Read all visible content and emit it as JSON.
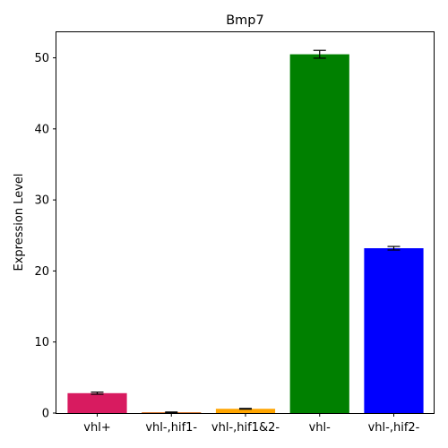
{
  "chart_data": {
    "type": "bar",
    "title": "Bmp7",
    "xlabel": "",
    "ylabel": "Expression Level",
    "categories": [
      "vhl+",
      "vhl-,hif1-",
      "vhl-,hif1&2-",
      "vhl-",
      "vhl-,hif2-"
    ],
    "values": [
      2.8,
      0.1,
      0.6,
      50.5,
      23.2
    ],
    "errors": [
      0.15,
      0.05,
      0.05,
      0.55,
      0.25
    ],
    "colors": [
      "#d81b60",
      "#cc5500",
      "#ffa500",
      "#008000",
      "#0000ff"
    ],
    "ylim": [
      0,
      53.6
    ],
    "yticks": [
      0,
      10,
      20,
      30,
      40,
      50
    ],
    "grid": false,
    "legend": "none"
  }
}
